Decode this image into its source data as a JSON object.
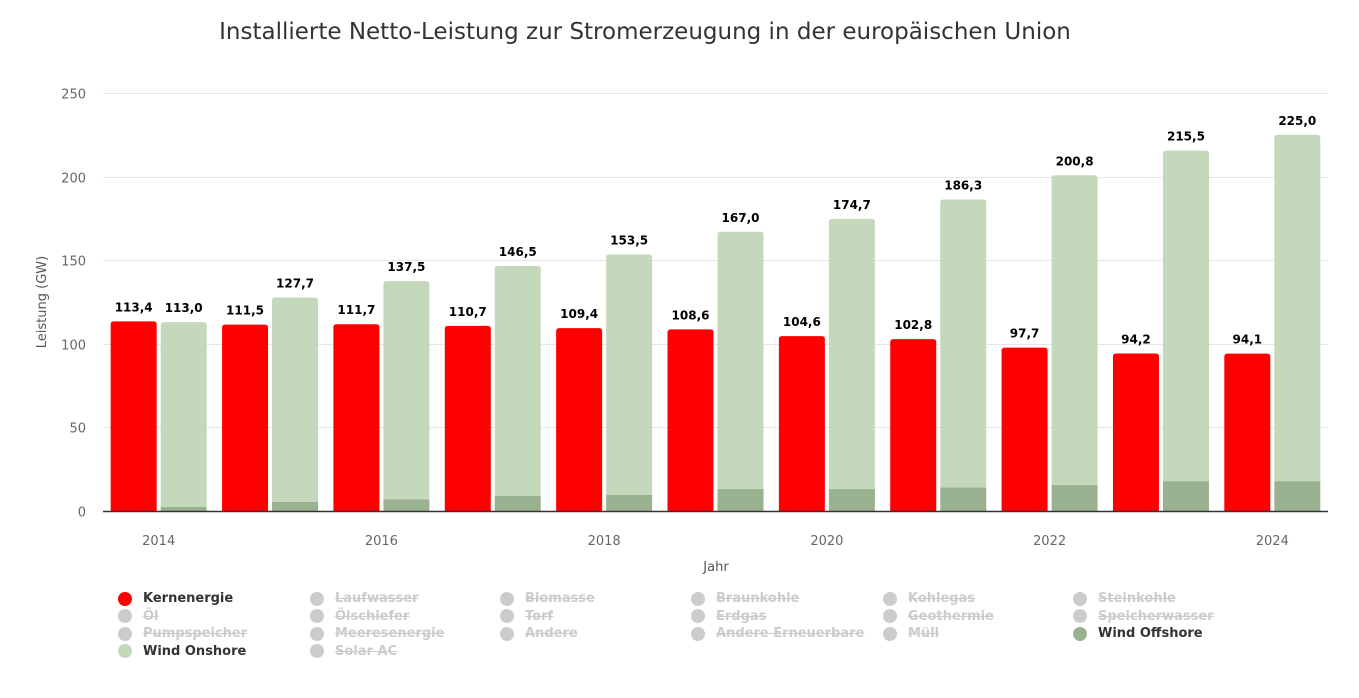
{
  "chart_data": {
    "type": "bar",
    "title": "Installierte Netto-Leistung zur Stromerzeugung in der europäischen Union",
    "xlabel": "Jahr",
    "ylabel": "Leistung (GW)",
    "ylim": [
      0,
      250
    ],
    "yticks": [
      "0",
      "50",
      "100",
      "150",
      "200",
      "250"
    ],
    "ytick_values": [
      0,
      50,
      100,
      150,
      200,
      250
    ],
    "grid": true,
    "categories": [
      "2014",
      "2015",
      "2016",
      "2017",
      "2018",
      "2019",
      "2020",
      "2021",
      "2022",
      "2023",
      "2024"
    ],
    "xtick_labels": [
      "2014",
      "",
      "2016",
      "",
      "2018",
      "",
      "2020",
      "",
      "2022",
      "",
      "2024"
    ],
    "series": [
      {
        "name": "Kernenergie",
        "color": "#ff0000",
        "stack": "nuclear",
        "values": [
          113.4,
          111.5,
          111.7,
          110.7,
          109.4,
          108.6,
          104.6,
          102.8,
          97.7,
          94.2,
          94.1
        ],
        "labels": [
          "113,4",
          "111,5",
          "111,7",
          "110,7",
          "109,4",
          "108,6",
          "104,6",
          "102,8",
          "97,7",
          "94,2",
          "94,1"
        ]
      },
      {
        "name": "Wind Offshore",
        "color": "#9bb291",
        "stack": "wind",
        "values": [
          2.4,
          5.4,
          6.9,
          9.0,
          9.6,
          13.2,
          13.2,
          14.1,
          15.6,
          17.9,
          17.9
        ]
      },
      {
        "name": "Wind Onshore",
        "color": "#c4d9bb",
        "stack": "wind",
        "values": [
          110.6,
          122.3,
          130.6,
          137.5,
          143.9,
          153.8,
          161.5,
          172.2,
          185.2,
          197.6,
          207.1
        ]
      }
    ],
    "stack_totals": {
      "stack": "wind",
      "values": [
        113.0,
        127.7,
        137.5,
        146.5,
        153.5,
        167.0,
        174.7,
        186.3,
        200.8,
        215.5,
        225.0
      ],
      "labels": [
        "113,0",
        "127,7",
        "137,5",
        "146,5",
        "153,5",
        "167,0",
        "174,7",
        "186,3",
        "200,8",
        "215,5",
        "225,0"
      ]
    },
    "legend_position": "bottom",
    "legend": [
      {
        "name": "Kernenergie",
        "color": "#ff0000",
        "visible": true
      },
      {
        "name": "Laufwasser",
        "color": "#cccccc",
        "visible": false
      },
      {
        "name": "Biomasse",
        "color": "#cccccc",
        "visible": false
      },
      {
        "name": "Braunkohle",
        "color": "#cccccc",
        "visible": false
      },
      {
        "name": "Kohlegas",
        "color": "#cccccc",
        "visible": false
      },
      {
        "name": "Steinkohle",
        "color": "#cccccc",
        "visible": false
      },
      {
        "name": "Öl",
        "color": "#cccccc",
        "visible": false
      },
      {
        "name": "Ölschiefer",
        "color": "#cccccc",
        "visible": false
      },
      {
        "name": "Torf",
        "color": "#cccccc",
        "visible": false
      },
      {
        "name": "Erdgas",
        "color": "#cccccc",
        "visible": false
      },
      {
        "name": "Geothermie",
        "color": "#cccccc",
        "visible": false
      },
      {
        "name": "Speicherwasser",
        "color": "#cccccc",
        "visible": false
      },
      {
        "name": "Pumpspeicher",
        "color": "#cccccc",
        "visible": false
      },
      {
        "name": "Meeresenergie",
        "color": "#cccccc",
        "visible": false
      },
      {
        "name": "Andere",
        "color": "#cccccc",
        "visible": false
      },
      {
        "name": "Andere Erneuerbare",
        "color": "#cccccc",
        "visible": false
      },
      {
        "name": "Müll",
        "color": "#cccccc",
        "visible": false
      },
      {
        "name": "Wind Offshore",
        "color": "#9bb291",
        "visible": true
      },
      {
        "name": "Wind Onshore",
        "color": "#c4d9bb",
        "visible": true
      },
      {
        "name": "Solar AC",
        "color": "#cccccc",
        "visible": false
      }
    ]
  }
}
